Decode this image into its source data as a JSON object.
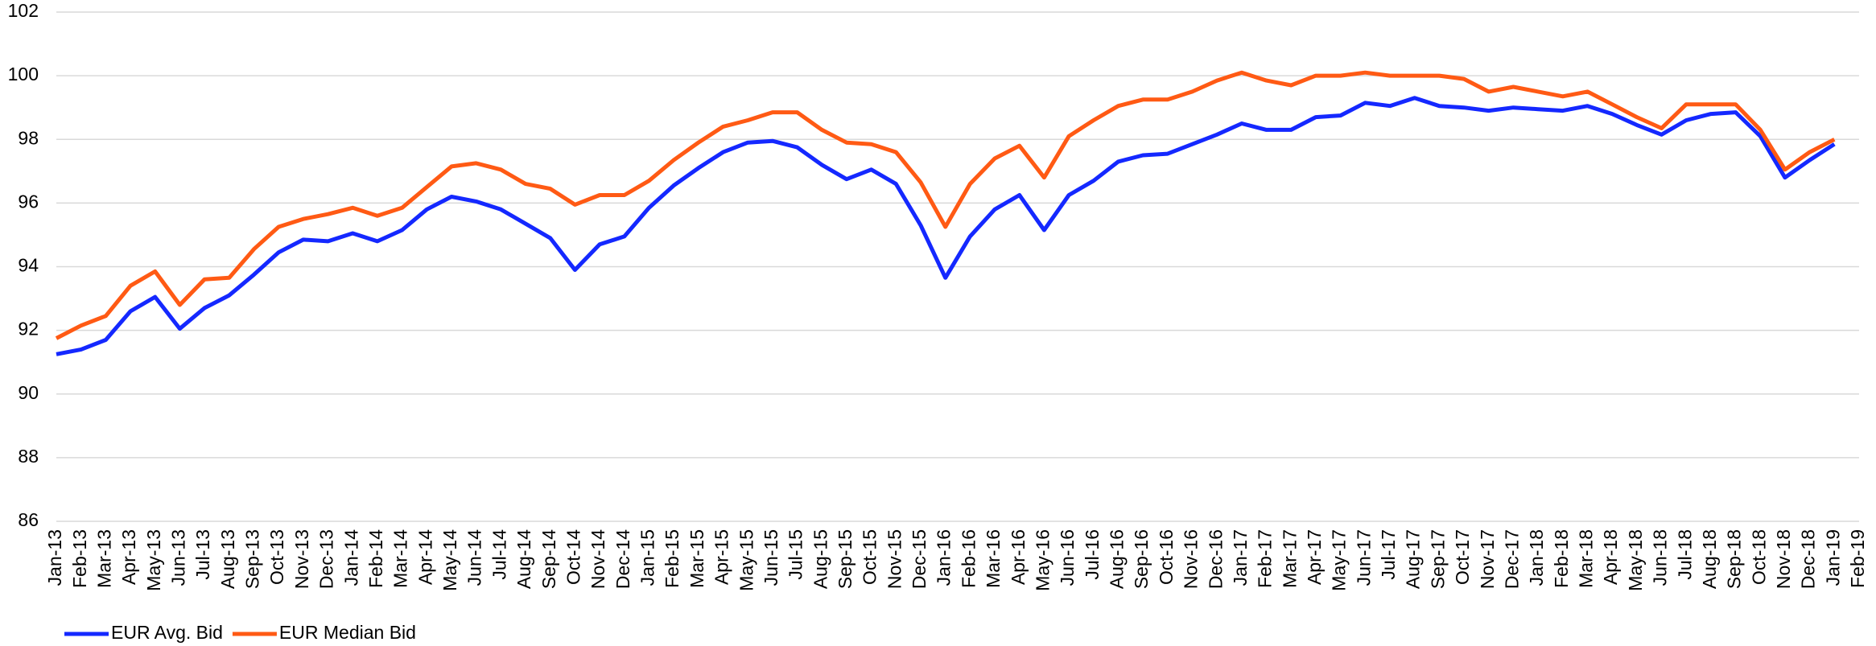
{
  "chart_data": {
    "type": "line",
    "categories": [
      "Jan-13",
      "Feb-13",
      "Mar-13",
      "Apr-13",
      "May-13",
      "Jun-13",
      "Jul-13",
      "Aug-13",
      "Sep-13",
      "Oct-13",
      "Nov-13",
      "Dec-13",
      "Jan-14",
      "Feb-14",
      "Mar-14",
      "Apr-14",
      "May-14",
      "Jun-14",
      "Jul-14",
      "Aug-14",
      "Sep-14",
      "Oct-14",
      "Nov-14",
      "Dec-14",
      "Jan-15",
      "Feb-15",
      "Mar-15",
      "Apr-15",
      "May-15",
      "Jun-15",
      "Jul-15",
      "Aug-15",
      "Sep-15",
      "Oct-15",
      "Nov-15",
      "Dec-15",
      "Jan-16",
      "Feb-16",
      "Mar-16",
      "Apr-16",
      "May-16",
      "Jun-16",
      "Jul-16",
      "Aug-16",
      "Sep-16",
      "Oct-16",
      "Nov-16",
      "Dec-16",
      "Jan-17",
      "Feb-17",
      "Mar-17",
      "Apr-17",
      "May-17",
      "Jun-17",
      "Jul-17",
      "Aug-17",
      "Sep-17",
      "Oct-17",
      "Nov-17",
      "Dec-17",
      "Jan-18",
      "Feb-18",
      "Mar-18",
      "Apr-18",
      "May-18",
      "Jun-18",
      "Jul-18",
      "Aug-18",
      "Sep-18",
      "Oct-18",
      "Nov-18",
      "Dec-18",
      "Jan-19",
      "Feb-19"
    ],
    "series": [
      {
        "name": "EUR Avg. Bid",
        "color": "#1428ff",
        "values": [
          91.25,
          91.4,
          91.7,
          92.6,
          93.05,
          92.05,
          92.7,
          93.1,
          93.75,
          94.45,
          94.85,
          94.8,
          95.05,
          94.8,
          95.15,
          95.8,
          96.2,
          96.05,
          95.8,
          95.35,
          94.9,
          93.9,
          94.7,
          94.95,
          95.85,
          96.55,
          97.1,
          97.6,
          97.9,
          97.95,
          97.75,
          97.2,
          96.75,
          97.05,
          96.6,
          95.3,
          93.65,
          94.95,
          95.8,
          96.25,
          95.15,
          96.25,
          96.7,
          97.3,
          97.5,
          97.55,
          97.85,
          98.15,
          98.5,
          98.3,
          98.3,
          98.7,
          98.75,
          99.15,
          99.05,
          99.3,
          99.05,
          99.0,
          98.9,
          99.0,
          98.95,
          98.9,
          99.05,
          98.8,
          98.45,
          98.15,
          98.6,
          98.8,
          98.85,
          98.1,
          96.8,
          97.35,
          97.85,
          null
        ]
      },
      {
        "name": "EUR Median Bid",
        "color": "#ff5a14",
        "values": [
          91.75,
          92.15,
          92.45,
          93.4,
          93.85,
          92.8,
          93.6,
          93.65,
          94.55,
          95.25,
          95.5,
          95.65,
          95.85,
          95.6,
          95.85,
          96.5,
          97.15,
          97.25,
          97.05,
          96.6,
          96.45,
          95.95,
          96.25,
          96.25,
          96.7,
          97.35,
          97.9,
          98.4,
          98.6,
          98.85,
          98.85,
          98.3,
          97.9,
          97.85,
          97.6,
          96.65,
          95.25,
          96.6,
          97.4,
          97.8,
          96.8,
          98.1,
          98.6,
          99.05,
          99.25,
          99.25,
          99.5,
          99.85,
          100.1,
          99.85,
          99.7,
          100.0,
          100.0,
          100.1,
          100.0,
          100.0,
          100.0,
          99.9,
          99.5,
          99.65,
          99.5,
          99.35,
          99.5,
          99.1,
          98.7,
          98.35,
          99.1,
          99.1,
          99.1,
          98.3,
          97.05,
          97.6,
          98.0,
          null
        ]
      }
    ],
    "ylim": [
      86,
      102
    ],
    "yticks": [
      86,
      88,
      90,
      92,
      94,
      96,
      98,
      100,
      102
    ],
    "grid": true,
    "legend": "bottom-left"
  }
}
